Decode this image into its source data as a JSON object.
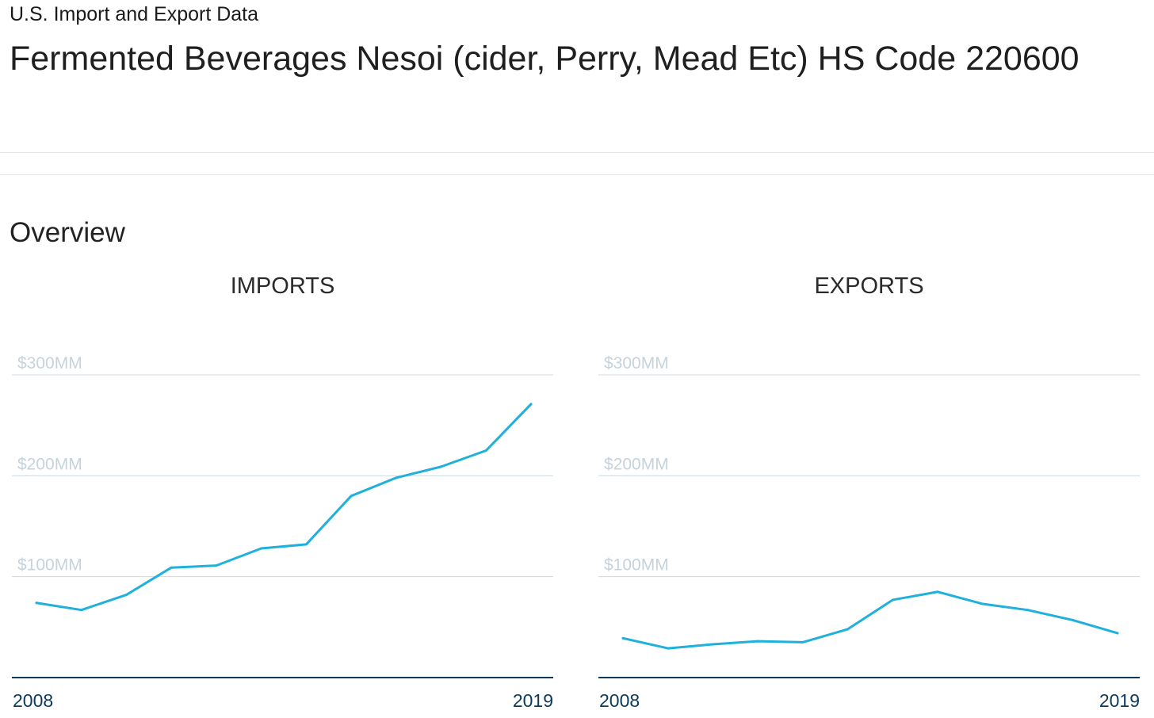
{
  "header": {
    "eyebrow": "U.S. Import and Export Data",
    "title": "Fermented Beverages Nesoi (cider, Perry, Mead Etc) HS Code 220600"
  },
  "overview": {
    "title": "Overview"
  },
  "colors": {
    "line": "#1fb0dc",
    "grid": "#ccd9e0",
    "tick_label": "#c6d3db",
    "baseline": "#0d3a5a",
    "year_label": "#0d3a5a"
  },
  "chart_data": [
    {
      "type": "line",
      "title": "IMPORTS",
      "x": [
        2008,
        2009,
        2010,
        2011,
        2012,
        2013,
        2014,
        2015,
        2016,
        2017,
        2018,
        2019
      ],
      "series": [
        {
          "name": "Imports",
          "values": [
            74,
            67,
            82,
            109,
            111,
            128,
            132,
            180,
            198,
            209,
            225,
            271
          ]
        }
      ],
      "ylim": [
        0,
        300
      ],
      "yticks": [
        100,
        200,
        300
      ],
      "ytick_labels": [
        "$100MM",
        "$200MM",
        "$300MM"
      ],
      "xtick_labels": [
        "2008",
        "2019"
      ],
      "xlabel": "",
      "ylabel": "",
      "grid": true
    },
    {
      "type": "line",
      "title": "EXPORTS",
      "x": [
        2008,
        2009,
        2010,
        2011,
        2012,
        2013,
        2014,
        2015,
        2016,
        2017,
        2018,
        2019
      ],
      "series": [
        {
          "name": "Exports",
          "values": [
            39,
            29,
            33,
            36,
            35,
            48,
            77,
            85,
            73,
            67,
            57,
            44
          ]
        }
      ],
      "ylim": [
        0,
        300
      ],
      "yticks": [
        100,
        200,
        300
      ],
      "ytick_labels": [
        "$100MM",
        "$200MM",
        "$300MM"
      ],
      "xtick_labels": [
        "2008",
        "2019"
      ],
      "xlabel": "",
      "ylabel": "",
      "grid": true
    }
  ]
}
